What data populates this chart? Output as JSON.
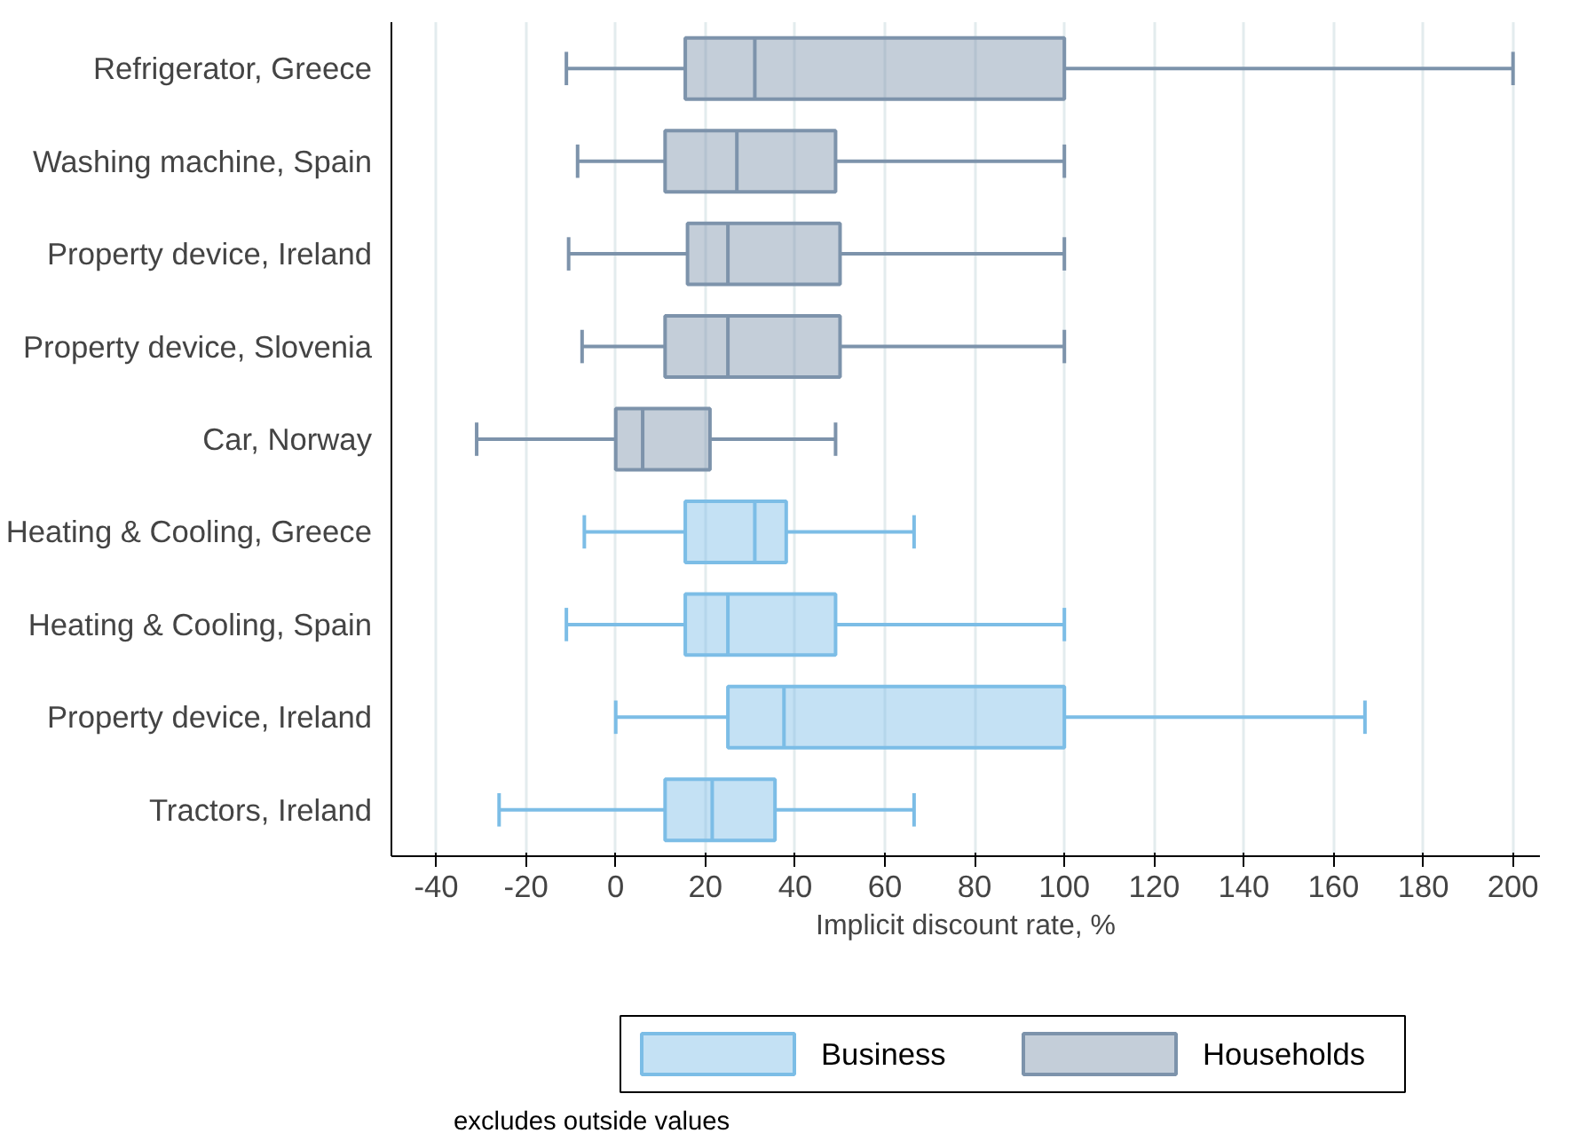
{
  "chart_data": {
    "type": "box",
    "orientation": "horizontal",
    "xlabel": "Implicit discount rate, %",
    "categories": [
      "Refrigerator, Greece",
      "Washing machine, Spain",
      "Property device, Ireland",
      "Property device, Slovenia",
      "Car, Norway",
      "Heating & Cooling, Greece",
      "Heating & Cooling, Spain",
      "Property device, Ireland",
      "Tractors, Ireland"
    ],
    "series": [
      {
        "name": "Business",
        "color": "#7cbde6",
        "boxes": [
          null,
          null,
          null,
          null,
          null,
          {
            "low": -7,
            "q1": 15.5,
            "median": 31,
            "q3": 38,
            "high": 66.5
          },
          {
            "low": -11,
            "q1": 15.5,
            "median": 25,
            "q3": 49,
            "high": 100
          },
          {
            "low": 0,
            "q1": 25,
            "median": 37.5,
            "q3": 100,
            "high": 167
          },
          {
            "low": -26,
            "q1": 11,
            "median": 21.5,
            "q3": 35.5,
            "high": 66.5
          }
        ]
      },
      {
        "name": "Households",
        "color": "#7d93ab",
        "boxes": [
          {
            "low": -11,
            "q1": 15.5,
            "median": 31,
            "q3": 100,
            "high": 200
          },
          {
            "low": -8.5,
            "q1": 11,
            "median": 27,
            "q3": 49,
            "high": 100
          },
          {
            "low": -10.5,
            "q1": 16,
            "median": 25,
            "q3": 50,
            "high": 100
          },
          {
            "low": -7.5,
            "q1": 11,
            "median": 25,
            "q3": 50,
            "high": 100
          },
          {
            "low": -31,
            "q1": 0,
            "median": 6,
            "q3": 21,
            "high": 49
          },
          null,
          null,
          null,
          null
        ]
      }
    ],
    "xlim": [
      -50,
      206
    ],
    "xticks": [
      -40,
      -20,
      0,
      20,
      40,
      60,
      80,
      100,
      120,
      140,
      160,
      180,
      200
    ],
    "grid": "x",
    "legend": "bottom",
    "annotations": [
      "excludes outside values"
    ]
  }
}
